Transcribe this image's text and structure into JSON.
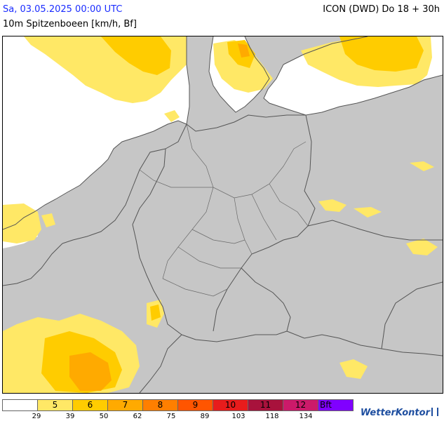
{
  "header": {
    "date": "Sa, 03.05.2025 00:00 UTC",
    "parameter": "10m Spitzenboeen [km/h, Bf]",
    "model": "ICON (DWD) Do 18 + 30h"
  },
  "legend": {
    "cells": [
      {
        "label": "",
        "color": "#ffffff"
      },
      {
        "label": "5",
        "color": "#ffe866"
      },
      {
        "label": "6",
        "color": "#ffcc00"
      },
      {
        "label": "7",
        "color": "#ffaa00"
      },
      {
        "label": "8",
        "color": "#ff7f00"
      },
      {
        "label": "9",
        "color": "#ff5500"
      },
      {
        "label": "10",
        "color": "#e81c1c"
      },
      {
        "label": "11",
        "color": "#a8123c"
      },
      {
        "label": "12",
        "color": "#cc1a6a"
      },
      {
        "label": "Bft",
        "color": "#8000ff"
      }
    ],
    "ticks": [
      "29",
      "39",
      "50",
      "62",
      "75",
      "89",
      "103",
      "118",
      "134"
    ]
  },
  "map": {
    "land_color": "#c6c6c6",
    "water_color": "#ffffff",
    "border_color": "#555555"
  },
  "brand": {
    "name": "WetterKontor",
    "icon": "wind-gauge-icon"
  }
}
